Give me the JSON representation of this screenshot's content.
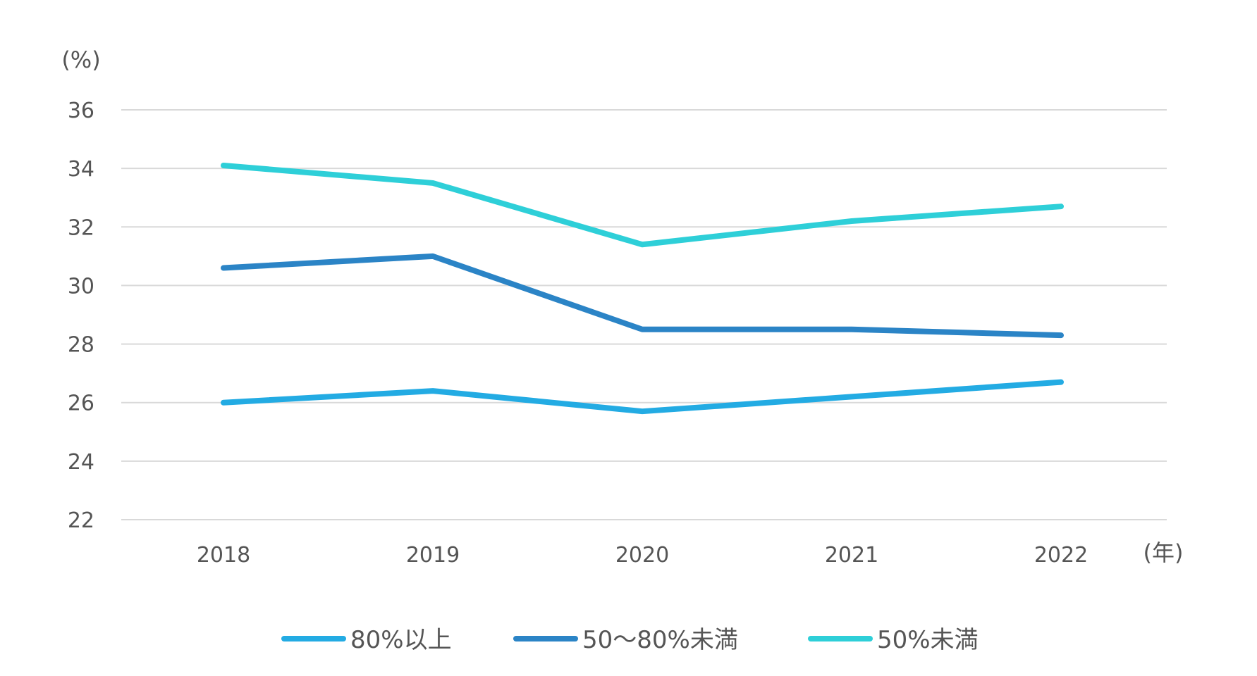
{
  "chart_data": {
    "type": "line",
    "title": "",
    "ylabel": "(%)",
    "xlabel": "(年)",
    "ylim": [
      22,
      36
    ],
    "yticks": [
      22,
      24,
      26,
      28,
      30,
      32,
      34,
      36
    ],
    "categories": [
      "2018",
      "2019",
      "2020",
      "2021",
      "2022"
    ],
    "grid": true,
    "legend_position": "bottom",
    "series": [
      {
        "name": "80%以上",
        "color": "#23ABE3",
        "values": [
          26.0,
          26.4,
          25.7,
          26.2,
          26.7
        ]
      },
      {
        "name": "50～80%未満",
        "color": "#2B84C6",
        "values": [
          30.6,
          31.0,
          28.5,
          28.5,
          28.3
        ]
      },
      {
        "name": "50%未満",
        "color": "#2ECFD8",
        "values": [
          34.1,
          33.5,
          31.4,
          32.2,
          32.7
        ]
      }
    ]
  }
}
